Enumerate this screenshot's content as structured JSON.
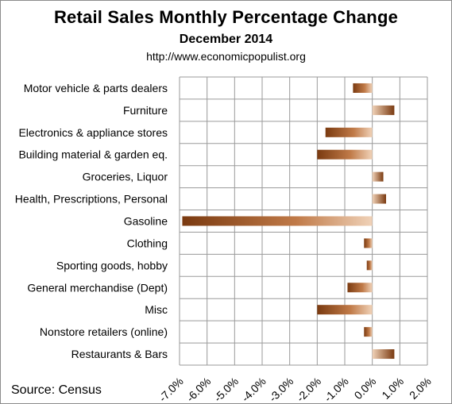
{
  "chart_data": {
    "type": "bar",
    "orientation": "horizontal",
    "title": "Retail Sales Monthly Percentage Change",
    "subtitle": "December 2014",
    "source_url": "http://www.economicpopulist.org",
    "source_note": "Source:  Census",
    "categories": [
      "Motor vehicle & parts dealers",
      "Furniture",
      "Electronics & appliance stores",
      "Building material & garden eq.",
      "Groceries, Liquor",
      "Health, Prescriptions, Personal",
      "Gasoline",
      "Clothing",
      "Sporting goods, hobby",
      "General merchandise (Dept)",
      "Misc",
      "Nonstore retailers (online)",
      "Restaurants & Bars"
    ],
    "values": [
      -0.7,
      0.8,
      -1.7,
      -2.0,
      0.4,
      0.5,
      -6.9,
      -0.3,
      -0.2,
      -0.9,
      -2.0,
      -0.3,
      0.8
    ],
    "xlim": [
      -7.0,
      2.0
    ],
    "ticks": [
      "-7.0%",
      "-6.0%",
      "-5.0%",
      "-4.0%",
      "-3.0%",
      "-2.0%",
      "-1.0%",
      "0.0%",
      "1.0%",
      "2.0%"
    ],
    "grid": true,
    "colors": {
      "bar_dark": "#7a3a10",
      "bar_mid": "#c07a48",
      "bar_light": "#f0d2b8",
      "grid": "#9a9a9a"
    }
  }
}
